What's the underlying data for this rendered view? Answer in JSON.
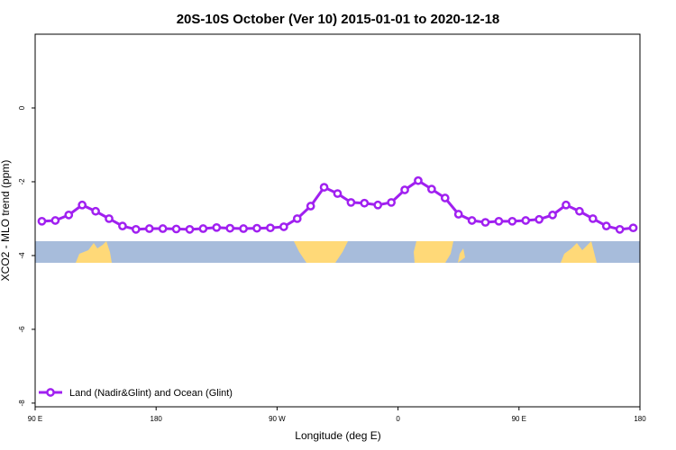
{
  "chart_data": {
    "type": "line",
    "title": "20S-10S October (Ver 10)   2015-01-01 to 2020-12-18",
    "x_label": "Longitude (deg E)",
    "y_label": "XCO2 - MLO trend (ppm)",
    "x": [
      95,
      105,
      115,
      125,
      135,
      145,
      155,
      165,
      175,
      185,
      195,
      205,
      215,
      225,
      235,
      245,
      255,
      265,
      275,
      285,
      295,
      305,
      315,
      325,
      335,
      345,
      355,
      365,
      375,
      385,
      395,
      405,
      415,
      425,
      435,
      445,
      455,
      465,
      475,
      485,
      495,
      505,
      515,
      525,
      535
    ],
    "series": [
      {
        "name": "Land (Nadir&Glint) and Ocean (Glint)",
        "color": "#a020f0",
        "values": [
          -3.07,
          -3.05,
          -2.9,
          -2.63,
          -2.8,
          -3.0,
          -3.2,
          -3.29,
          -3.27,
          -3.27,
          -3.28,
          -3.29,
          -3.27,
          -3.24,
          -3.26,
          -3.27,
          -3.26,
          -3.25,
          -3.22,
          -3.0,
          -2.66,
          -2.15,
          -2.32,
          -2.56,
          -2.58,
          -2.63,
          -2.56,
          -2.22,
          -1.97,
          -2.2,
          -2.44,
          -2.88,
          -3.05,
          -3.1,
          -3.07,
          -3.07,
          -3.05,
          -3.02,
          -2.9,
          -2.63,
          -2.8,
          -3.0,
          -3.2,
          -3.29,
          -3.25
        ]
      }
    ],
    "xlim": [
      90,
      540
    ],
    "xticks": [
      {
        "value": 90,
        "label": "90 E"
      },
      180,
      {
        "value": 270,
        "label": "90 W"
      },
      {
        "value": 360,
        "label": "0"
      },
      {
        "value": 450,
        "label": "90 E"
      },
      {
        "value": 540,
        "label": "180"
      }
    ],
    "ylim": [
      -8.1,
      2
    ],
    "yticks": [
      -8,
      -6,
      -4,
      -2,
      0
    ],
    "legend": "bottomleft"
  }
}
